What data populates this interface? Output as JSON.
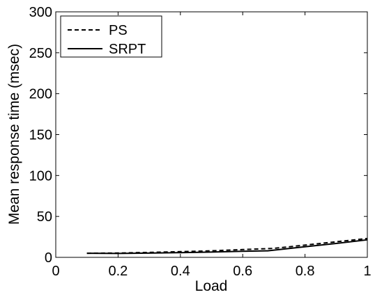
{
  "chart_data": {
    "type": "line",
    "title": "",
    "xlabel": "Load",
    "ylabel": "Mean response time (msec)",
    "xlim": [
      0,
      1
    ],
    "ylim": [
      0,
      300
    ],
    "x_ticks": [
      0,
      0.2,
      0.4,
      0.6,
      0.8,
      1
    ],
    "x_tick_labels": [
      "0",
      "0.2",
      "0.4",
      "0.6",
      "0.8",
      "1"
    ],
    "y_ticks": [
      0,
      50,
      100,
      150,
      200,
      250,
      300
    ],
    "y_tick_labels": [
      "0",
      "50",
      "100",
      "150",
      "200",
      "250",
      "300"
    ],
    "grid": false,
    "legend_position": "top-left",
    "series": [
      {
        "name": "PS",
        "style": "dashed",
        "color": "#000000",
        "x": [
          0.1,
          0.2,
          0.3,
          0.4,
          0.5,
          0.6,
          0.7,
          0.8,
          0.9,
          1.0
        ],
        "y": [
          5,
          5.3,
          6,
          7,
          8,
          9.5,
          11,
          15,
          19,
          23
        ]
      },
      {
        "name": "SRPT",
        "style": "solid",
        "color": "#000000",
        "x": [
          0.1,
          0.2,
          0.3,
          0.4,
          0.5,
          0.6,
          0.68,
          0.8,
          0.9,
          1.0
        ],
        "y": [
          5,
          4.8,
          5.2,
          5.8,
          6.5,
          7.4,
          8,
          13,
          17,
          21.5
        ]
      }
    ]
  }
}
